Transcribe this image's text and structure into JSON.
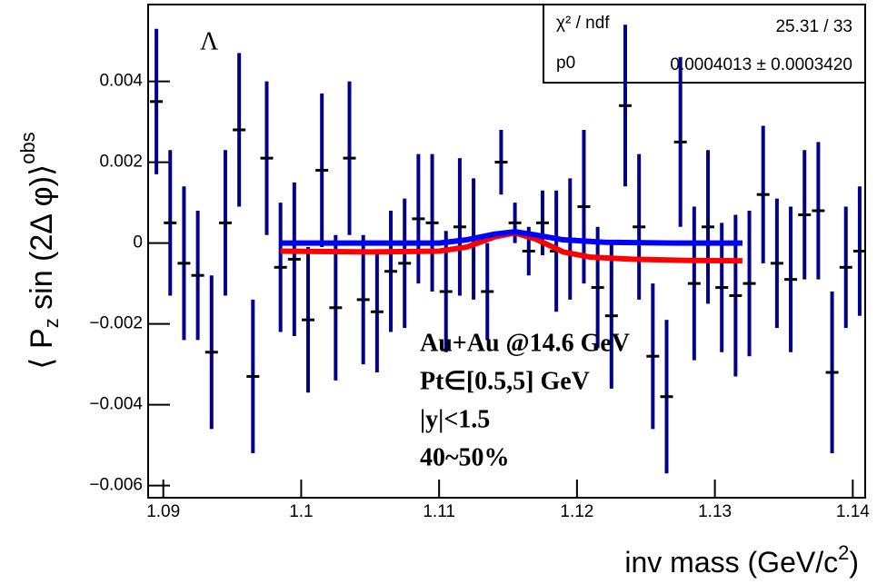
{
  "chart_data": {
    "type": "errorbar",
    "ylabel": {
      "main": "⟨ P",
      "sub": "z",
      "rest": " sin (2Δ φ)⟩",
      "sup": "obs"
    },
    "xlabel": {
      "main": "inv mass (GeV/c",
      "sup": "2",
      "end": ")"
    },
    "particle": "Λ",
    "stats": [
      [
        "χ² / ndf",
        "25.31 / 33"
      ],
      [
        "p0",
        "0.0004013 ± 0.0003420"
      ]
    ],
    "annotation": [
      "Au+Au @14.6 GeV",
      "Pt∈[0.5,5] GeV",
      "|y|<1.5",
      "40~50%"
    ],
    "xlim": [
      1.0889,
      1.1409
    ],
    "ylim": [
      -0.0063,
      0.0059
    ],
    "xticks": [
      1.09,
      1.1,
      1.11,
      1.12,
      1.13,
      1.14
    ],
    "yticks": [
      {
        "value": -0.006,
        "label": "−0.006"
      },
      {
        "value": -0.004,
        "label": "−0.004"
      },
      {
        "value": -0.002,
        "label": "−0.002"
      },
      0,
      0.002,
      0.004
    ],
    "points": {
      "color": "#00008b",
      "x": [
        1.0895,
        1.0905,
        1.0915,
        1.0925,
        1.0935,
        1.0945,
        1.0955,
        1.0965,
        1.0975,
        1.0985,
        1.0995,
        1.1005,
        1.1015,
        1.1025,
        1.1035,
        1.1045,
        1.1055,
        1.1065,
        1.1075,
        1.1085,
        1.1095,
        1.1105,
        1.1115,
        1.1125,
        1.1135,
        1.1145,
        1.1155,
        1.1165,
        1.1175,
        1.1185,
        1.1195,
        1.1205,
        1.1215,
        1.1225,
        1.1235,
        1.1245,
        1.1255,
        1.1265,
        1.1275,
        1.1285,
        1.1295,
        1.1305,
        1.1315,
        1.1325,
        1.1335,
        1.1345,
        1.1355,
        1.1365,
        1.1375,
        1.1385,
        1.1395,
        1.1405
      ],
      "values": [
        0.0035,
        0.0005,
        -0.0005,
        -0.0008,
        -0.0027,
        0.0005,
        0.0028,
        -0.0033,
        0.0021,
        -0.0006,
        -0.0004,
        -0.0019,
        0.0018,
        -0.0016,
        0.0021,
        -0.0014,
        -0.0017,
        -0.0007,
        -0.0005,
        0.0006,
        0.0005,
        -0.0012,
        0.0004,
        0.0001,
        -0.0012,
        0.002,
        0.0005,
        -0.0002,
        0.0005,
        -0.0002,
        0.0001,
        0.0009,
        -0.0011,
        -0.0018,
        0.0034,
        0.0004,
        -0.0028,
        -0.0038,
        0.0025,
        -0.001,
        0.0004,
        -0.0011,
        -0.0013,
        -0.001,
        0.0012,
        -0.0005,
        -0.0009,
        0.0007,
        0.0008,
        -0.0032,
        -0.0006,
        -0.0002
      ],
      "errors": [
        0.0018,
        0.0018,
        0.0019,
        0.0016,
        0.0019,
        0.0018,
        0.0019,
        0.0019,
        0.0019,
        0.0016,
        0.0019,
        0.0018,
        0.0019,
        0.0018,
        0.0019,
        0.0016,
        0.0015,
        0.0015,
        0.0016,
        0.0016,
        0.0017,
        0.0015,
        0.0017,
        0.0015,
        0.0012,
        0.0008,
        0.0005,
        0.0006,
        0.0008,
        0.0015,
        0.0015,
        0.0019,
        0.0015,
        0.0018,
        0.002,
        0.0018,
        0.0018,
        0.0019,
        0.0021,
        0.0019,
        0.0019,
        0.0016,
        0.002,
        0.0018,
        0.0017,
        0.0016,
        0.0018,
        0.0016,
        0.0017,
        0.002,
        0.0015,
        0.0016
      ]
    },
    "curves": [
      {
        "color": "#ff0000",
        "x": [
          1.0985,
          1.105,
          1.11,
          1.112,
          1.114,
          1.1155,
          1.117,
          1.119,
          1.121,
          1.124,
          1.128,
          1.132
        ],
        "values": [
          -0.0002,
          -0.00022,
          -0.0002,
          -0.0001,
          0.00015,
          0.00025,
          0.0001,
          -0.00022,
          -0.00035,
          -0.0004,
          -0.00043,
          -0.00044
        ]
      },
      {
        "color": "#0000ff",
        "x": [
          1.0985,
          1.105,
          1.11,
          1.112,
          1.114,
          1.1155,
          1.117,
          1.119,
          1.122,
          1.127,
          1.132
        ],
        "values": [
          0,
          0,
          0,
          8e-05,
          0.00022,
          0.00028,
          0.0002,
          8e-05,
          2e-05,
          0,
          0
        ]
      }
    ]
  }
}
